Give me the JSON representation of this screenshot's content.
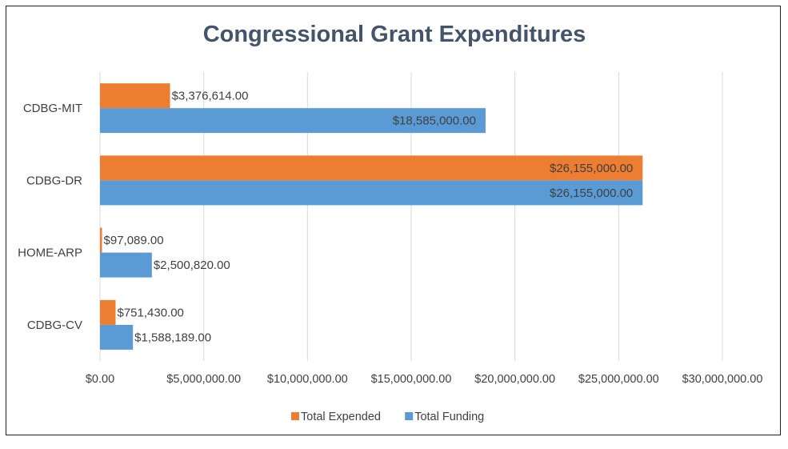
{
  "chart_data": {
    "type": "bar",
    "orientation": "horizontal",
    "title": "Congressional Grant Expenditures",
    "categories": [
      "CDBG-MIT",
      "CDBG-DR",
      "HOME-ARP",
      "CDBG-CV"
    ],
    "series": [
      {
        "name": "Total Expended",
        "color": "#ed7d31",
        "values": [
          3376614,
          26155000,
          97089,
          751430
        ],
        "labels": [
          "$3,376,614.00",
          "$26,155,000.00",
          "$97,089.00",
          "$751,430.00"
        ]
      },
      {
        "name": "Total Funding",
        "color": "#5b9bd5",
        "values": [
          18585000,
          26155000,
          2500820,
          1588189
        ],
        "labels": [
          "$18,585,000.00",
          "$26,155,000.00",
          "$2,500,820.00",
          "$1,588,189.00"
        ]
      }
    ],
    "xlim": [
      0,
      30000000
    ],
    "xticks": [
      0,
      5000000,
      10000000,
      15000000,
      20000000,
      25000000,
      30000000
    ],
    "xtick_labels": [
      "$0.00",
      "$5,000,000.00",
      "$10,000,000.00",
      "$15,000,000.00",
      "$20,000,000.00",
      "$25,000,000.00",
      "$30,000,000.00"
    ],
    "grid": "vertical",
    "legend": "bottom"
  }
}
